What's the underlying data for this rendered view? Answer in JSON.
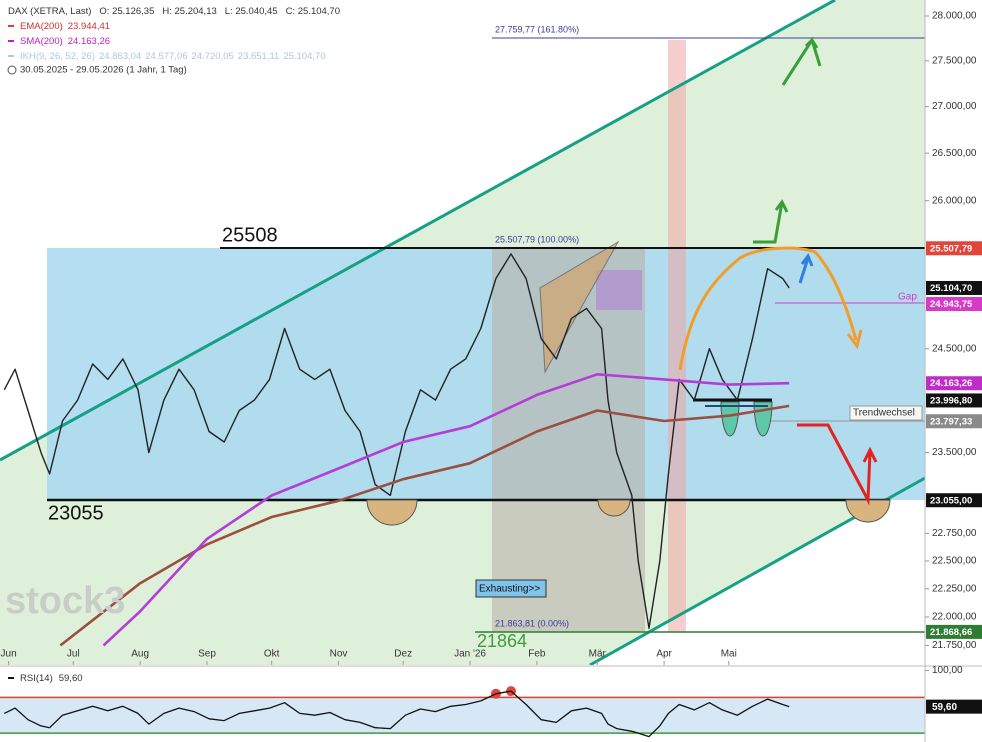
{
  "header": {
    "ohlc": [
      "O: 25.126,35",
      "H: 25.204,13",
      "L: 25.040,45",
      "C: 25.104,70"
    ],
    "ikh": {
      "name": "IKH(9, 26, 52, 26)",
      "values": [
        "24.863,04",
        "24.577,06",
        "24.720,05",
        "23.651,11",
        "25.104,70"
      ]
    },
    "period": "30.05.2025 - 29.05.2026 (1 Jahr, 1 Tag)",
    "watermark": "stock3"
  },
  "annotations": {
    "high": "25508",
    "low": "23055",
    "bottom": "21864",
    "fib_161": "27.759,77 (161.80%)",
    "fib_100": "25.507,79 (100.00%)",
    "fib_0": "21.863,81 (0.00%)",
    "exhausting": "Exhausting>>",
    "gap": "Gap",
    "trend": "Trendwechsel"
  },
  "chart_data": [
    {
      "type": "line",
      "title": "DAX (XETRA, Last)",
      "log_scale": true,
      "xlim": [
        "2025-05-28",
        "2026-07-31"
      ],
      "ylim": [
        21580,
        28180
      ],
      "xticks": [
        {
          "value": "2025-06",
          "label": "Jun"
        },
        {
          "value": "2025-07",
          "label": "Jul"
        },
        {
          "value": "2025-08",
          "label": "Aug"
        },
        {
          "value": "2025-09",
          "label": "Sep"
        },
        {
          "value": "2025-10",
          "label": "Okt"
        },
        {
          "value": "2025-11",
          "label": "Nov"
        },
        {
          "value": "2025-12",
          "label": "Dez"
        },
        {
          "value": "2026-01",
          "label": "Jan '26"
        },
        {
          "value": "2026-02",
          "label": "Feb"
        },
        {
          "value": "2026-03",
          "label": "Mär"
        },
        {
          "value": "2026-04",
          "label": "Apr"
        },
        {
          "value": "2026-05",
          "label": "Mai"
        }
      ],
      "yticks": [
        {
          "value": 28000,
          "label": "28.000,00"
        },
        {
          "value": 27500,
          "label": "27.500,00"
        },
        {
          "value": 27000,
          "label": "27.000,00"
        },
        {
          "value": 26500,
          "label": "26.500,00"
        },
        {
          "value": 26000,
          "label": "26.000,00"
        },
        {
          "value": 24500,
          "label": "24.500,00"
        },
        {
          "value": 23500,
          "label": "23.500,00"
        },
        {
          "value": 22750,
          "label": "22.750,00"
        },
        {
          "value": 22500,
          "label": "22.500,00"
        },
        {
          "value": 22250,
          "label": "22.250,00"
        },
        {
          "value": 22000,
          "label": "22.000,00"
        },
        {
          "value": 21750,
          "label": "21.750,00"
        }
      ],
      "series": [
        {
          "color": "#222222",
          "x": [
            "2025-05-30",
            "2025-06-04",
            "2025-06-10",
            "2025-06-16",
            "2025-06-20",
            "2025-06-26",
            "2025-07-03",
            "2025-07-10",
            "2025-07-17",
            "2025-07-24",
            "2025-07-31",
            "2025-08-05",
            "2025-08-12",
            "2025-08-19",
            "2025-08-26",
            "2025-09-02",
            "2025-09-09",
            "2025-09-16",
            "2025-09-23",
            "2025-09-30",
            "2025-10-07",
            "2025-10-14",
            "2025-10-21",
            "2025-10-28",
            "2025-11-04",
            "2025-11-11",
            "2025-11-18",
            "2025-11-25",
            "2025-12-02",
            "2025-12-09",
            "2025-12-16",
            "2025-12-23",
            "2025-12-30",
            "2026-01-06",
            "2026-01-13",
            "2026-01-20",
            "2026-01-27",
            "2026-02-03",
            "2026-02-10",
            "2026-02-17",
            "2026-02-24",
            "2026-03-03",
            "2026-03-06",
            "2026-03-10",
            "2026-03-17",
            "2026-03-20",
            "2026-03-25",
            "2026-03-30",
            "2026-04-03",
            "2026-04-08",
            "2026-04-15",
            "2026-04-22",
            "2026-04-28",
            "2026-05-05",
            "2026-05-12",
            "2026-05-19",
            "2026-05-26",
            "2026-05-29"
          ],
          "values": [
            24100,
            24300,
            23900,
            23500,
            23300,
            23800,
            24000,
            24350,
            24200,
            24400,
            24100,
            23500,
            24000,
            24300,
            24100,
            23700,
            23600,
            23900,
            24000,
            24200,
            24700,
            24300,
            24200,
            24300,
            23900,
            23700,
            23200,
            23100,
            23700,
            24100,
            24000,
            24300,
            24400,
            24700,
            25200,
            25450,
            25200,
            24600,
            24400,
            24800,
            24900,
            24700,
            24000,
            23500,
            23100,
            22500,
            21900,
            22500,
            23300,
            24200,
            24000,
            24500,
            24200,
            24000,
            24600,
            25300,
            25200,
            25104.7
          ]
        },
        {
          "name": "EMA(200)",
          "legend_value": "23.944,41",
          "color": "#9a5040",
          "x": [
            "2025-06-25",
            "2025-08-01",
            "2025-09-01",
            "2025-10-01",
            "2025-11-01",
            "2025-12-01",
            "2026-01-01",
            "2026-02-01",
            "2026-03-01",
            "2026-04-01",
            "2026-05-01",
            "2026-05-29"
          ],
          "values": [
            21750,
            22300,
            22650,
            22900,
            23050,
            23250,
            23400,
            23700,
            23900,
            23800,
            23850,
            23944.41
          ]
        },
        {
          "name": "SMA(200)",
          "legend_value": "24.163,26",
          "color": "#b53cd8",
          "x": [
            "2025-07-15",
            "2025-08-01",
            "2025-09-01",
            "2025-10-01",
            "2025-11-01",
            "2025-12-01",
            "2026-01-01",
            "2026-02-01",
            "2026-03-01",
            "2026-04-01",
            "2026-05-01",
            "2026-05-29"
          ],
          "values": [
            21750,
            22050,
            22700,
            23100,
            23350,
            23600,
            23750,
            24050,
            24250,
            24200,
            24150,
            24163.26
          ]
        }
      ],
      "price_labels": [
        {
          "value": 25507.79,
          "label": "25.507,79",
          "color": "#e2453a"
        },
        {
          "value": 25104.7,
          "label": "25.104,70",
          "color": "#111111"
        },
        {
          "value": 24943.75,
          "label": "24.943,75",
          "color": "#d63cc8"
        },
        {
          "value": 24163.26,
          "label": "24.163,26",
          "color": "#c02cc8"
        },
        {
          "value": 23996.8,
          "label": "23.996,80",
          "color": "#111111"
        },
        {
          "value": 23797.33,
          "label": "23.797,33",
          "color": "#8a8a8a"
        },
        {
          "value": 23055.0,
          "label": "23.055,00",
          "color": "#111111"
        },
        {
          "value": 21868.66,
          "label": "21.868,66",
          "color": "#2e7d32"
        }
      ]
    },
    {
      "type": "line",
      "title": "RSI(14)",
      "ylim": [
        20,
        104
      ],
      "overbought": 70,
      "oversold": 30,
      "yticks": [
        {
          "value": 100,
          "label": "100,00"
        }
      ],
      "last_label": {
        "value": 59.6,
        "label": "59,60"
      },
      "series": [
        {
          "color": "#111111",
          "x": [
            "2025-05-30",
            "2025-06-04",
            "2025-06-10",
            "2025-06-16",
            "2025-06-20",
            "2025-06-26",
            "2025-07-03",
            "2025-07-10",
            "2025-07-17",
            "2025-07-24",
            "2025-07-31",
            "2025-08-05",
            "2025-08-12",
            "2025-08-19",
            "2025-08-26",
            "2025-09-02",
            "2025-09-09",
            "2025-09-16",
            "2025-09-23",
            "2025-09-30",
            "2025-10-07",
            "2025-10-14",
            "2025-10-21",
            "2025-10-28",
            "2025-11-04",
            "2025-11-11",
            "2025-11-18",
            "2025-11-25",
            "2025-12-02",
            "2025-12-09",
            "2025-12-16",
            "2025-12-23",
            "2025-12-30",
            "2026-01-06",
            "2026-01-13",
            "2026-01-20",
            "2026-01-27",
            "2026-02-03",
            "2026-02-10",
            "2026-02-17",
            "2026-02-24",
            "2026-03-03",
            "2026-03-06",
            "2026-03-10",
            "2026-03-17",
            "2026-03-20",
            "2026-03-25",
            "2026-03-30",
            "2026-04-03",
            "2026-04-08",
            "2026-04-15",
            "2026-04-22",
            "2026-04-28",
            "2026-05-05",
            "2026-05-12",
            "2026-05-19",
            "2026-05-26",
            "2026-05-29"
          ],
          "values": [
            52,
            58,
            45,
            38,
            36,
            50,
            55,
            60,
            55,
            60,
            52,
            40,
            52,
            58,
            54,
            46,
            44,
            52,
            55,
            58,
            64,
            52,
            50,
            53,
            45,
            42,
            36,
            35,
            50,
            57,
            54,
            60,
            62,
            66,
            74,
            77,
            62,
            45,
            42,
            55,
            58,
            52,
            40,
            35,
            32,
            30,
            26,
            38,
            52,
            62,
            56,
            64,
            56,
            50,
            60,
            68,
            62,
            59.6
          ]
        }
      ]
    }
  ]
}
